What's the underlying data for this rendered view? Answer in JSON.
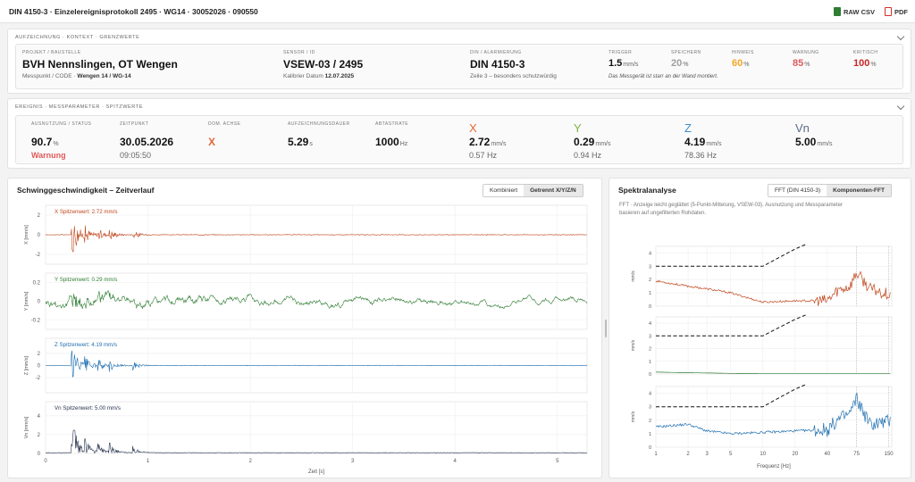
{
  "header": {
    "title": "DIN 4150-3 · Einzelereignisprotokoll 2495 · WG14 · 30052026 · 090550",
    "raw_csv": "RAW CSV",
    "pdf": "PDF"
  },
  "context": {
    "section_title": "AUFZEICHNUNG · KONTEXT · GRENZWERTE",
    "project_label": "PROJEKT / BAUSTELLE",
    "project": "BVH Nennslingen, OT Wengen",
    "messpunkt_prefix": "Messpunkt / CODE ·",
    "messpunkt_value": "Wengen 14 / WG-14",
    "sensor_label": "SENSOR / ID",
    "sensor": "VSEW-03 / 2495",
    "kalibrier_prefix": "Kalibrier Datum",
    "kalibrier_value": "12.07.2025",
    "din_label": "DIN / ALARMIERUNG",
    "din": "DIN 4150-3",
    "zeile": "Zeile 3 – besonders schutzwürdig",
    "trigger_label": "TRIGGER",
    "trigger_value": "1.5",
    "trigger_unit": "mm/s",
    "speichern_label": "SPEICHERN",
    "speichern_value": "20",
    "speichern_unit": "%",
    "hinweis_label": "HINWEIS",
    "hinweis_value": "60",
    "hinweis_unit": "%",
    "warnung_label": "WARNUNG",
    "warnung_value": "85",
    "warnung_unit": "%",
    "kritisch_label": "KRITISCH",
    "kritisch_value": "100",
    "kritisch_unit": "%",
    "note": "Das Messgerät ist starr an der Wand montiert.",
    "colors": {
      "speichern": "#9e9e9e",
      "hinweis": "#f5a623",
      "warnung": "#e05a5a",
      "kritisch": "#c62828"
    }
  },
  "event": {
    "section_title": "EREIGNIS · MESSPARAMETER · SPITZWERTE",
    "ausnutzung_label": "AUSNUTZUNG / STATUS",
    "ausnutzung_value": "90.7",
    "ausnutzung_unit": "%",
    "status": "Warnung",
    "zeit_label": "ZEITPUNKT",
    "datum": "30.05.2026",
    "uhrzeit": "09:05:50",
    "dom_label": "DOM. ACHSE",
    "dom_value": "X",
    "dauer_label": "AUFZEICHNUNGSDAUER",
    "dauer_value": "5.29",
    "dauer_unit": "s",
    "abtast_label": "ABTASTRATE",
    "abtast_value": "1000",
    "abtast_unit": "Hz",
    "axes": [
      {
        "name": "X",
        "peak": "2.72",
        "unit": "mm/s",
        "freq": "0.57 Hz",
        "color": "#e0693a"
      },
      {
        "name": "Y",
        "peak": "0.29",
        "unit": "mm/s",
        "freq": "0.94 Hz",
        "color": "#7cb342"
      },
      {
        "name": "Z",
        "peak": "4.19",
        "unit": "mm/s",
        "freq": "78.36 Hz",
        "color": "#3b8fd1"
      },
      {
        "name": "Vn",
        "peak": "5.00",
        "unit": "mm/s",
        "freq": "",
        "color": "#5a6b85"
      }
    ]
  },
  "timepanel": {
    "title": "Schwinggeschwindigkeit – Zeitverlauf",
    "tab1": "Kombiniert",
    "tab2": "Getrennt X/Y/Z/N",
    "xlabel": "Zeit [s]",
    "xticks": [
      "0",
      "1",
      "2",
      "3",
      "4",
      "5"
    ],
    "subplots": [
      {
        "label": "X Spitzenwert: 2.72 mm/s",
        "ylabel": "X [mm/s]",
        "yticks": [
          "2",
          "0",
          "-2"
        ],
        "color": "#c0461c"
      },
      {
        "label": "Y Spitzenwert: 0.29 mm/s",
        "ylabel": "Y [mm/s]",
        "yticks": [
          "0.2",
          "0",
          "-0.2"
        ],
        "color": "#2e7d32"
      },
      {
        "label": "Z Spitzenwert: 4.19 mm/s",
        "ylabel": "Z [mm/s]",
        "yticks": [
          "2",
          "0",
          "-2"
        ],
        "color": "#1f6fb0"
      },
      {
        "label": "Vn Spitzenwert: 5.00 mm/s",
        "ylabel": "Vn [mm/s]",
        "yticks": [
          "4",
          "2",
          "0"
        ],
        "color": "#2a3550"
      }
    ]
  },
  "spectrum": {
    "title": "Spektralanalyse",
    "tab1": "FFT (DIN 4150-3)",
    "tab2": "Komponenten-FFT",
    "desc1": "FFT · Anzeige leicht geglättet (5-Punkt-Mittelung, VSEW-03). Ausnutzung und Messparameter",
    "desc2": "basieren auf ungefilterten Rohdaten.",
    "xlabel": "Frequenz [Hz]",
    "xticks": [
      "1",
      "2",
      "3",
      "5",
      "10",
      "20",
      "40",
      "75",
      "150"
    ],
    "yticks": [
      "4",
      "3",
      "2",
      "1",
      "0"
    ],
    "ylabel": "mm/s",
    "colors": [
      "#c0461c",
      "#2e7d32",
      "#1f6fb0"
    ]
  },
  "chart_data": [
    {
      "type": "line",
      "title": "",
      "xlabel": "Zeit [s]",
      "ylabel": "X [mm/s]",
      "xlim": [
        0,
        5.29
      ],
      "ylim": [
        -3,
        3
      ],
      "series": [
        {
          "name": "X Spitzenwert: 2.72 mm/s",
          "peak": 2.72
        }
      ]
    },
    {
      "type": "line",
      "title": "",
      "xlabel": "Zeit [s]",
      "ylabel": "Y [mm/s]",
      "xlim": [
        0,
        5.29
      ],
      "ylim": [
        -0.3,
        0.3
      ],
      "series": [
        {
          "name": "Y Spitzenwert: 0.29 mm/s",
          "peak": 0.29
        }
      ]
    },
    {
      "type": "line",
      "title": "",
      "xlabel": "Zeit [s]",
      "ylabel": "Z [mm/s]",
      "xlim": [
        0,
        5.29
      ],
      "ylim": [
        -4.5,
        4.5
      ],
      "series": [
        {
          "name": "Z Spitzenwert: 4.19 mm/s",
          "peak": 4.19
        }
      ]
    },
    {
      "type": "line",
      "title": "",
      "xlabel": "Zeit [s]",
      "ylabel": "Vn [mm/s]",
      "xlim": [
        0,
        5.29
      ],
      "ylim": [
        0,
        5.5
      ],
      "series": [
        {
          "name": "Vn Spitzenwert: 5.00 mm/s",
          "peak": 5.0
        }
      ]
    },
    {
      "type": "line",
      "title": "",
      "xlabel": "Frequenz [Hz]",
      "ylabel": "mm/s",
      "log_x": true,
      "xlim": [
        1,
        160
      ],
      "ylim": [
        0,
        4.5
      ],
      "threshold": {
        "x": [
          1,
          10,
          13,
          20,
          25
        ],
        "y": [
          3,
          3,
          3.5,
          4.3,
          5
        ]
      },
      "components": [
        {
          "x": [
            1,
            2,
            3,
            5,
            10,
            20,
            40,
            50,
            65,
            75,
            100,
            150
          ],
          "y": [
            1.9,
            1.5,
            1.3,
            1.0,
            0.3,
            0.4,
            0.4,
            1.2,
            1.5,
            2.5,
            1.3,
            0.9
          ]
        },
        {
          "x": [
            1,
            2,
            3,
            5,
            10,
            20,
            40,
            75,
            150
          ],
          "y": [
            0.15,
            0.1,
            0.08,
            0.05,
            0.02,
            0.01,
            0.01,
            0.01,
            0.01
          ]
        },
        {
          "x": [
            1,
            2,
            3,
            5,
            10,
            20,
            40,
            50,
            65,
            75,
            100,
            150
          ],
          "y": [
            1.5,
            1.7,
            1.2,
            1.0,
            1.1,
            1.2,
            1.3,
            2.0,
            2.5,
            3.6,
            1.7,
            1.9
          ]
        }
      ]
    }
  ]
}
